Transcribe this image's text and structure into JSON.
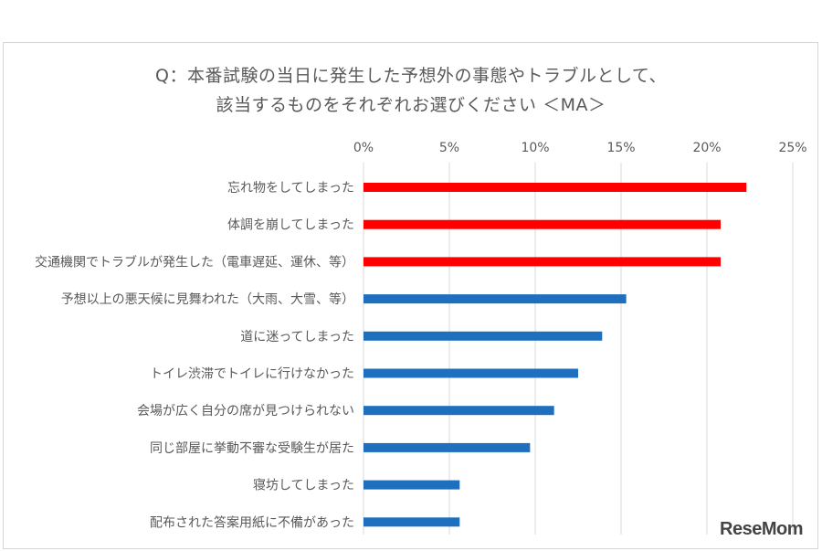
{
  "chart_data": {
    "type": "bar",
    "orientation": "horizontal",
    "title_lines": [
      "Q：本番試験の当日に発生した予想外の事態やトラブルとして、",
      "該当するものをそれぞれお選びください ＜MA＞"
    ],
    "x_ticks": [
      "0%",
      "5%",
      "10%",
      "15%",
      "20%",
      "25%"
    ],
    "xlim": [
      0,
      25
    ],
    "grid": true,
    "categories": [
      "忘れ物をしてしまった",
      "体調を崩してしまった",
      "交通機関でトラブルが発生した（電車遅延、運休、等）",
      "予想以上の悪天候に見舞われた（大雨、大雪、等）",
      "道に迷ってしまった",
      "トイレ渋滞でトイレに行けなかった",
      "会場が広く自分の席が見つけられない",
      "同じ部屋に挙動不審な受験生が居た",
      "寝坊してしまった",
      "配布された答案用紙に不備があった"
    ],
    "values": [
      22.3,
      20.8,
      20.8,
      15.3,
      13.9,
      12.5,
      11.1,
      9.7,
      5.6,
      5.6
    ],
    "colors": [
      "#ff0000",
      "#ff0000",
      "#ff0000",
      "#1f6fbf",
      "#1f6fbf",
      "#1f6fbf",
      "#1f6fbf",
      "#1f6fbf",
      "#1f6fbf",
      "#1f6fbf"
    ]
  },
  "watermark": "ReseMom"
}
